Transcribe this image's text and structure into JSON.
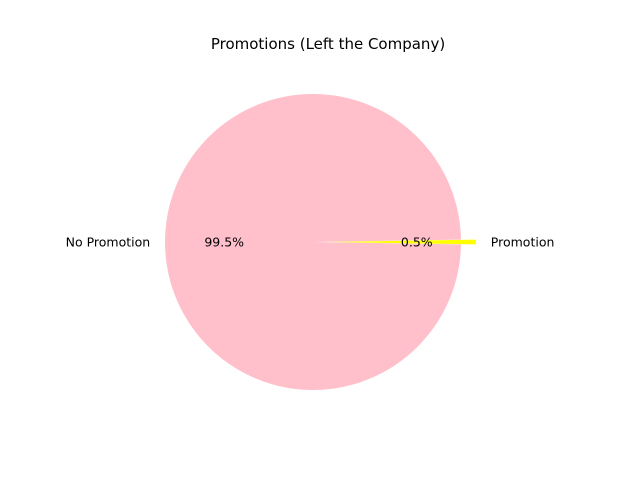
{
  "chart_data": {
    "type": "pie",
    "title": "Promotions (Left the Company)",
    "slices": [
      {
        "label": "No Promotion",
        "value": 99.5,
        "pct_label": "99.5%",
        "color": "#ffc0cb",
        "exploded": false
      },
      {
        "label": "Promotion",
        "value": 0.5,
        "pct_label": "0.5%",
        "color": "#ffff00",
        "exploded": true
      }
    ]
  }
}
